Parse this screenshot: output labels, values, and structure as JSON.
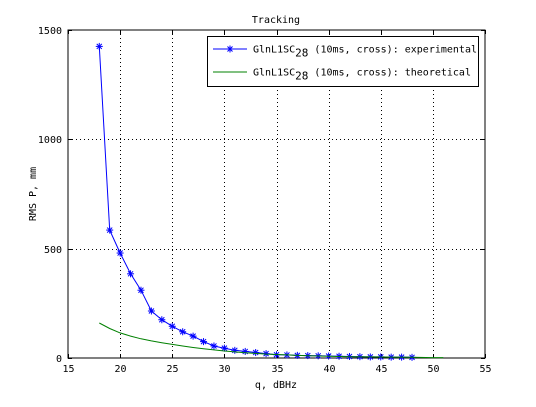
{
  "chart_data": {
    "type": "line",
    "title": "Tracking",
    "xlabel": "q, dBHz",
    "ylabel": "RMS P, mm",
    "xlim": [
      15,
      55
    ],
    "ylim": [
      0,
      1500
    ],
    "xticks": [
      15,
      20,
      25,
      30,
      35,
      40,
      45,
      50,
      55
    ],
    "yticks": [
      0,
      500,
      1000,
      1500
    ],
    "grid": true,
    "legend_position": "top-right",
    "series": [
      {
        "name": "GlnL1SC",
        "name_sub": "28",
        "name_suffix": " (10ms, cross): experimental",
        "color": "#0000ff",
        "marker": "asterisk",
        "x": [
          18,
          19,
          20,
          21,
          22,
          23,
          24,
          25,
          26,
          27,
          28,
          29,
          30,
          31,
          32,
          33,
          34,
          35,
          36,
          37,
          38,
          39,
          40,
          41,
          42,
          43,
          44,
          45,
          46,
          47,
          48
        ],
        "y": [
          1425,
          585,
          480,
          385,
          310,
          215,
          175,
          145,
          120,
          100,
          75,
          55,
          45,
          35,
          30,
          25,
          20,
          15,
          14,
          12,
          11,
          10,
          9,
          8,
          7,
          6,
          5,
          5,
          4,
          4,
          3
        ]
      },
      {
        "name": "GlnL1SC",
        "name_sub": "28",
        "name_suffix": " (10ms, cross): theoretical",
        "color": "#008000",
        "marker": "none",
        "x": [
          18,
          19,
          20,
          21,
          22,
          23,
          24,
          25,
          26,
          27,
          28,
          29,
          30,
          31,
          32,
          33,
          34,
          35,
          36,
          37,
          38,
          39,
          40,
          42,
          44,
          46,
          48,
          50,
          51
        ],
        "y": [
          160,
          135,
          115,
          100,
          88,
          78,
          70,
          62,
          55,
          48,
          42,
          37,
          32,
          28,
          24,
          21,
          18,
          16,
          14,
          12,
          10,
          9,
          8,
          6,
          5,
          4,
          3,
          2,
          2
        ]
      }
    ]
  }
}
